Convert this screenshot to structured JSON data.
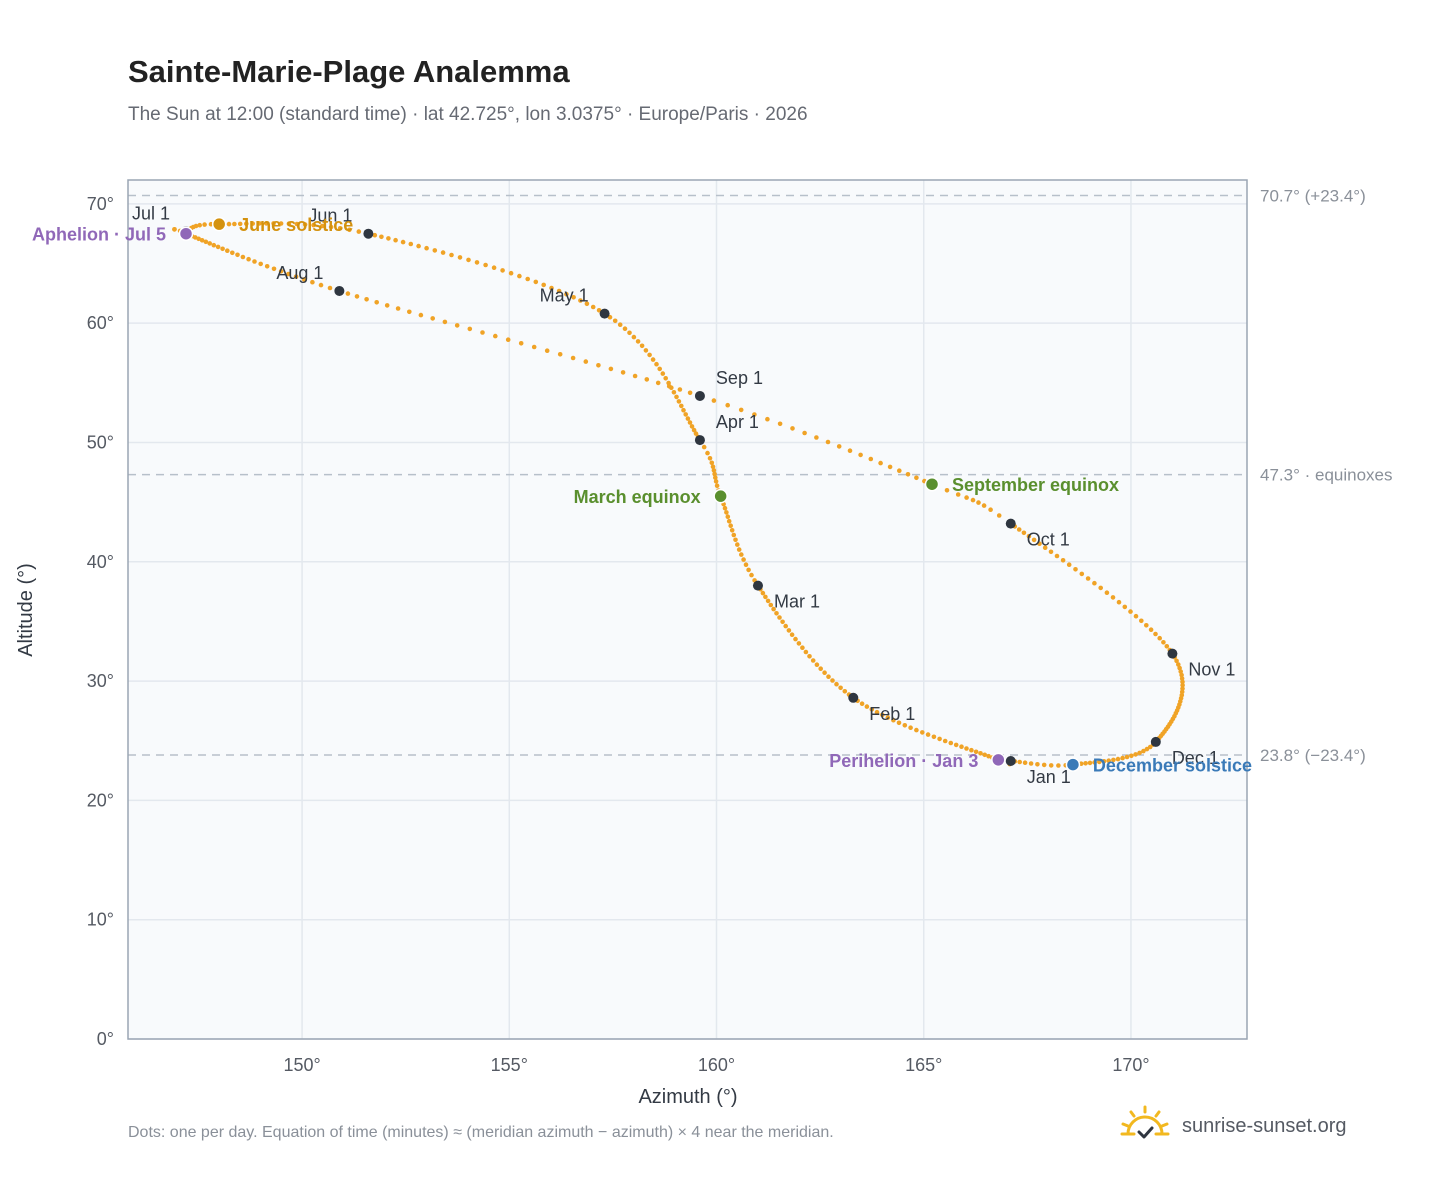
{
  "header": {
    "title": "Sainte-Marie-Plage Analemma",
    "subtitle": "The Sun at 12:00 (standard time) · lat 42.725°, lon 3.0375° · Europe/Paris · 2026"
  },
  "footer": {
    "note": "Dots: one per day. Equation of time (minutes) ≈ (meridian azimuth − azimuth) × 4 near the meridian.",
    "brand": "sunrise-sunset.org"
  },
  "colors": {
    "curve": "#f0a326",
    "month_dot": "#2f3640",
    "solstice_june": "#d4920f",
    "solstice_december": "#3a7ab8",
    "equinox": "#5a8f2e",
    "apsis": "#9068b8",
    "plot_bg": "#f8fafc",
    "grid": "#e3e8ee",
    "ref_line": "#b7c0ca"
  },
  "chart_data": {
    "type": "scatter",
    "title": "Sainte-Marie-Plage Analemma",
    "xlabel": "Azimuth (°)",
    "ylabel": "Altitude (°)",
    "xlim": [
      145.8,
      172.8
    ],
    "ylim": [
      0,
      72
    ],
    "x_ticks": [
      150,
      155,
      160,
      165,
      170
    ],
    "x_tick_labels": [
      "150°",
      "155°",
      "160°",
      "165°",
      "170°"
    ],
    "y_ticks": [
      0,
      10,
      20,
      30,
      40,
      50,
      60,
      70
    ],
    "y_tick_labels": [
      "0°",
      "10°",
      "20°",
      "30°",
      "40°",
      "50°",
      "60°",
      "70°"
    ],
    "grid": true,
    "reference_lines": [
      {
        "y": 70.7,
        "label": "70.7° (+23.4°)"
      },
      {
        "y": 47.3,
        "label": "47.3° · equinoxes"
      },
      {
        "y": 23.8,
        "label": "23.8° (−23.4°)"
      }
    ],
    "path": [
      {
        "day": 1,
        "az": 167.1,
        "alt": 23.3
      },
      {
        "day": 3,
        "az": 166.8,
        "alt": 23.4
      },
      {
        "day": 32,
        "az": 163.3,
        "alt": 28.6
      },
      {
        "day": 60,
        "az": 161.0,
        "alt": 38.0
      },
      {
        "day": 79,
        "az": 160.1,
        "alt": 45.5
      },
      {
        "day": 91,
        "az": 159.6,
        "alt": 50.2
      },
      {
        "day": 121,
        "az": 157.3,
        "alt": 60.8
      },
      {
        "day": 152,
        "az": 151.6,
        "alt": 67.5
      },
      {
        "day": 172,
        "az": 148.0,
        "alt": 68.3
      },
      {
        "day": 182,
        "az": 147.2,
        "alt": 67.7
      },
      {
        "day": 186,
        "az": 147.2,
        "alt": 67.5
      },
      {
        "day": 213,
        "az": 150.9,
        "alt": 62.7
      },
      {
        "day": 244,
        "az": 159.6,
        "alt": 53.9
      },
      {
        "day": 265,
        "az": 165.2,
        "alt": 46.5
      },
      {
        "day": 274,
        "az": 167.1,
        "alt": 43.2
      },
      {
        "day": 305,
        "az": 171.0,
        "alt": 32.3
      },
      {
        "day": 335,
        "az": 170.6,
        "alt": 24.9
      },
      {
        "day": 355,
        "az": 168.6,
        "alt": 23.0
      },
      {
        "day": 365,
        "az": 167.1,
        "alt": 23.3
      }
    ],
    "month_markers": [
      {
        "label": "Jan 1",
        "az": 167.1,
        "alt": 23.3,
        "pos": "below-right"
      },
      {
        "label": "Feb 1",
        "az": 163.3,
        "alt": 28.6,
        "pos": "below-right"
      },
      {
        "label": "Mar 1",
        "az": 161.0,
        "alt": 38.0,
        "pos": "below-right"
      },
      {
        "label": "Apr 1",
        "az": 159.6,
        "alt": 50.2,
        "pos": "above-right"
      },
      {
        "label": "May 1",
        "az": 157.3,
        "alt": 60.8,
        "pos": "above-left"
      },
      {
        "label": "Jun 1",
        "az": 151.6,
        "alt": 67.5,
        "pos": "above-left"
      },
      {
        "label": "Jul 1",
        "az": 147.2,
        "alt": 67.7,
        "pos": "above-left"
      },
      {
        "label": "Aug 1",
        "az": 150.9,
        "alt": 62.7,
        "pos": "above-left"
      },
      {
        "label": "Sep 1",
        "az": 159.6,
        "alt": 53.9,
        "pos": "above-right"
      },
      {
        "label": "Oct 1",
        "az": 167.1,
        "alt": 43.2,
        "pos": "below-right"
      },
      {
        "label": "Nov 1",
        "az": 171.0,
        "alt": 32.3,
        "pos": "below-right"
      },
      {
        "label": "Dec 1",
        "az": 170.6,
        "alt": 24.9,
        "pos": "below-right"
      }
    ],
    "events": [
      {
        "label": "June solstice",
        "az": 148.0,
        "alt": 68.3,
        "color_key": "solstice_june",
        "pos": "right"
      },
      {
        "label": "December solstice",
        "az": 168.6,
        "alt": 23.0,
        "color_key": "solstice_december",
        "pos": "right"
      },
      {
        "label": "March equinox",
        "az": 160.1,
        "alt": 45.5,
        "color_key": "equinox",
        "pos": "left"
      },
      {
        "label": "September equinox",
        "az": 165.2,
        "alt": 46.5,
        "color_key": "equinox",
        "pos": "right"
      },
      {
        "label": "Aphelion · Jul 5",
        "az": 147.2,
        "alt": 67.5,
        "color_key": "apsis",
        "pos": "left"
      },
      {
        "label": "Perihelion · Jan 3",
        "az": 166.8,
        "alt": 23.4,
        "color_key": "apsis",
        "pos": "left"
      }
    ]
  }
}
